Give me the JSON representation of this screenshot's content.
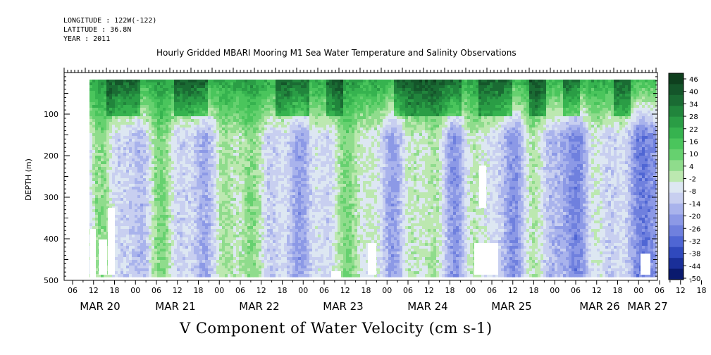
{
  "header": {
    "longitude": "LONGITUDE : 122W(-122)",
    "latitude": "LATITUDE : 36.8N",
    "year": "YEAR : 2011",
    "title": "Hourly Gridded MBARI Mooring M1 Sea Water Temperature and Salinity Observations"
  },
  "chart_data": {
    "type": "heatmap",
    "title": "Hourly Gridded MBARI Mooring M1 Sea Water Temperature and Salinity Observations",
    "xlabel": "",
    "ylabel": "DEPTH (m)",
    "variable_label": "V Component of Water Velocity (cm s-1)",
    "y_ticks": [
      100,
      200,
      300,
      400,
      500
    ],
    "y_range": [
      0,
      500
    ],
    "y_inverted": true,
    "x_range_hours": [
      "2011-03-19T20:00",
      "2011-03-27T06:00"
    ],
    "x_hour_ticks": [
      "06",
      "12",
      "18",
      "00",
      "06",
      "12",
      "18",
      "00",
      "06",
      "12",
      "18",
      "00",
      "06",
      "12",
      "18",
      "00",
      "06",
      "12",
      "18",
      "00",
      "06",
      "12",
      "18",
      "00",
      "06",
      "12",
      "18",
      "00",
      "06",
      "12",
      "18",
      "00"
    ],
    "date_labels": [
      "MAR 20",
      "MAR 21",
      "MAR 22",
      "MAR 23",
      "MAR 24",
      "MAR 25",
      "MAR 26",
      "MAR 27"
    ],
    "colorbar": {
      "levels": [
        46,
        40,
        34,
        28,
        22,
        16,
        10,
        4,
        -2,
        -8,
        -14,
        -20,
        -26,
        -32,
        -38,
        -44,
        -50
      ],
      "colors": [
        "#0e3f1e",
        "#14552a",
        "#1a6b33",
        "#21853c",
        "#2a9d45",
        "#36b34f",
        "#4ac55c",
        "#66d16f",
        "#8fdc8c",
        "#bce8b0",
        "#dde7f2",
        "#c8cff0",
        "#a9b3ec",
        "#8c99e6",
        "#6f80de",
        "#4f66d4",
        "#3049bd",
        "#1a2f99",
        "#0a1a6e"
      ]
    },
    "summary": "Green (positive, northward) values dominate the upper 50–150 m throughout; blue (negative) bands dominate depths below ~200 m, strongest on MAR 24–26; data gaps (white) appear near the bottom."
  }
}
